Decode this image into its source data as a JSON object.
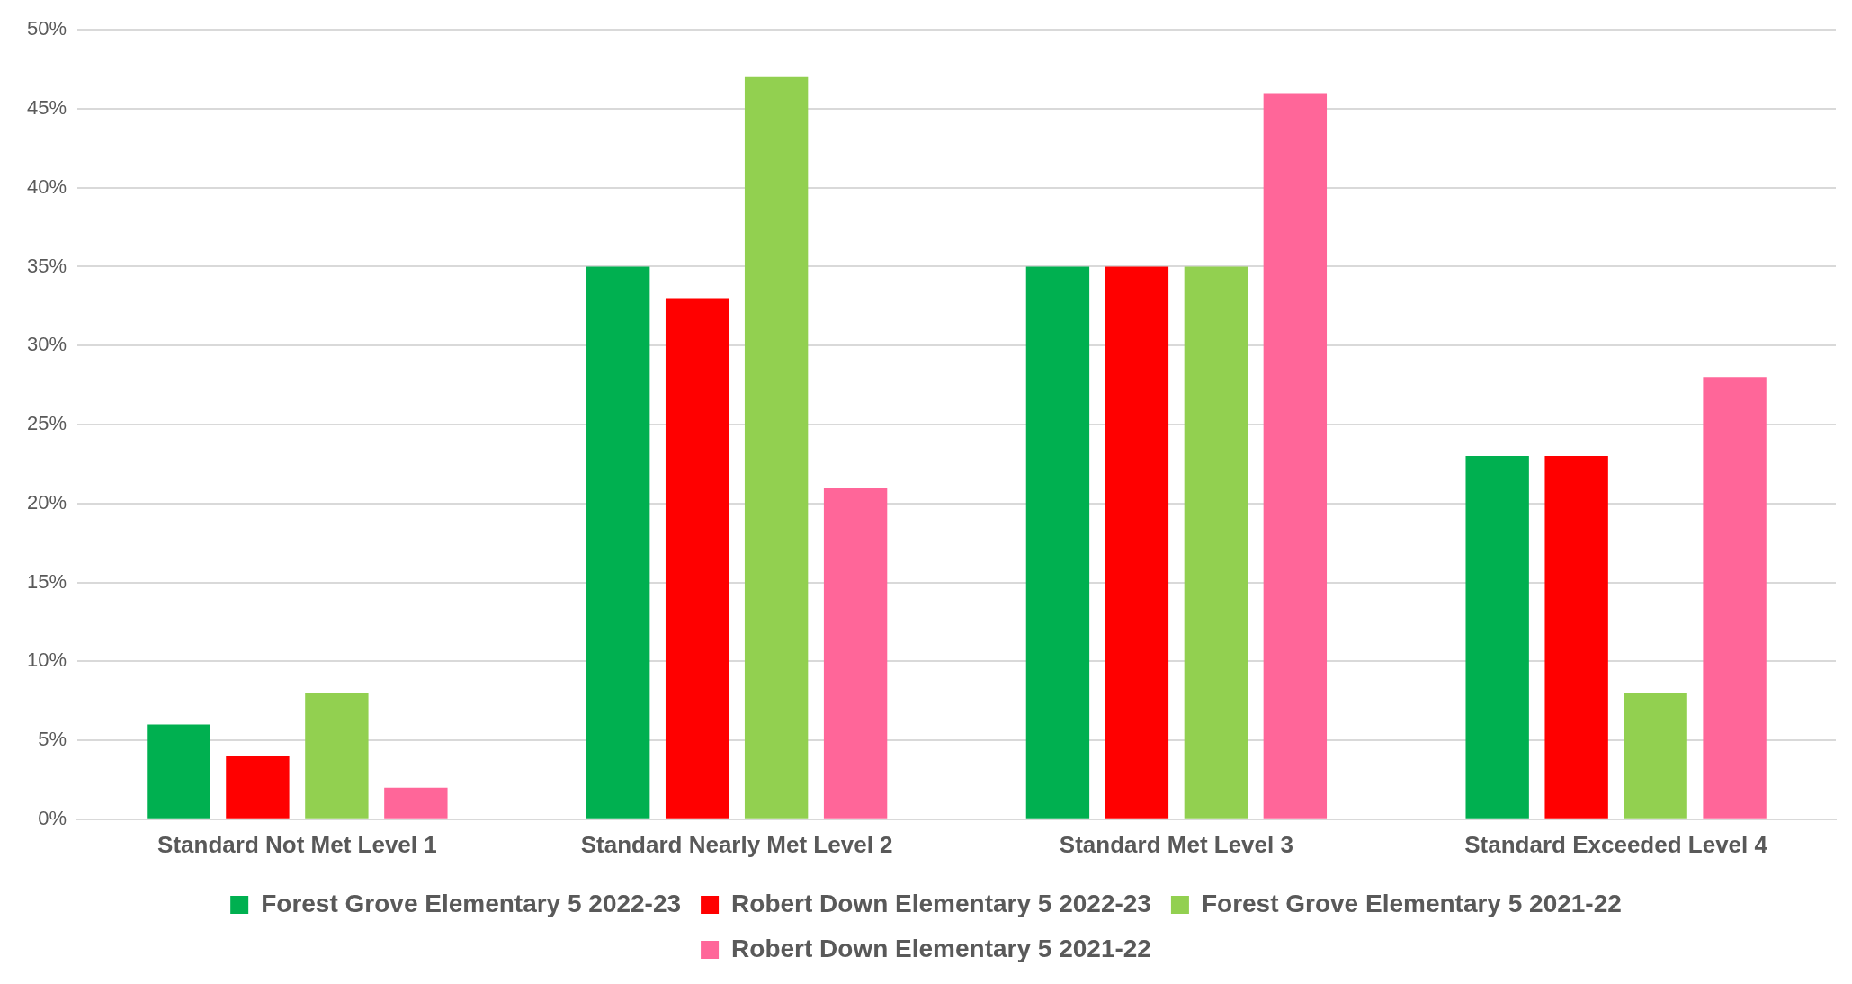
{
  "chart_data": {
    "type": "bar",
    "categories": [
      "Standard Not Met Level 1",
      "Standard Nearly Met Level 2",
      "Standard Met Level 3",
      "Standard Exceeded Level 4"
    ],
    "series": [
      {
        "name": "Forest Grove Elementary 5 2022-23",
        "color": "#00b050",
        "values": [
          6,
          35,
          35,
          23
        ]
      },
      {
        "name": "Robert Down Elementary 5 2022-23",
        "color": "#ff0000",
        "values": [
          4,
          33,
          35,
          23
        ]
      },
      {
        "name": "Forest Grove Elementary 5 2021-22",
        "color": "#92d050",
        "values": [
          8,
          47,
          35,
          8
        ]
      },
      {
        "name": "Robert Down Elementary 5 2021-22",
        "color": "#ff6699",
        "values": [
          2,
          21,
          46,
          28
        ]
      }
    ],
    "ylim": [
      0,
      50
    ],
    "yticks": [
      {
        "value": 0,
        "label": "0%"
      },
      {
        "value": 5,
        "label": "5%"
      },
      {
        "value": 10,
        "label": "10%"
      },
      {
        "value": 15,
        "label": "15%"
      },
      {
        "value": 20,
        "label": "20%"
      },
      {
        "value": 25,
        "label": "25%"
      },
      {
        "value": 30,
        "label": "30%"
      },
      {
        "value": 35,
        "label": "35%"
      },
      {
        "value": 40,
        "label": "40%"
      },
      {
        "value": 45,
        "label": "45%"
      },
      {
        "value": 50,
        "label": "50%"
      }
    ],
    "grid": "y",
    "legend": "bottom"
  }
}
